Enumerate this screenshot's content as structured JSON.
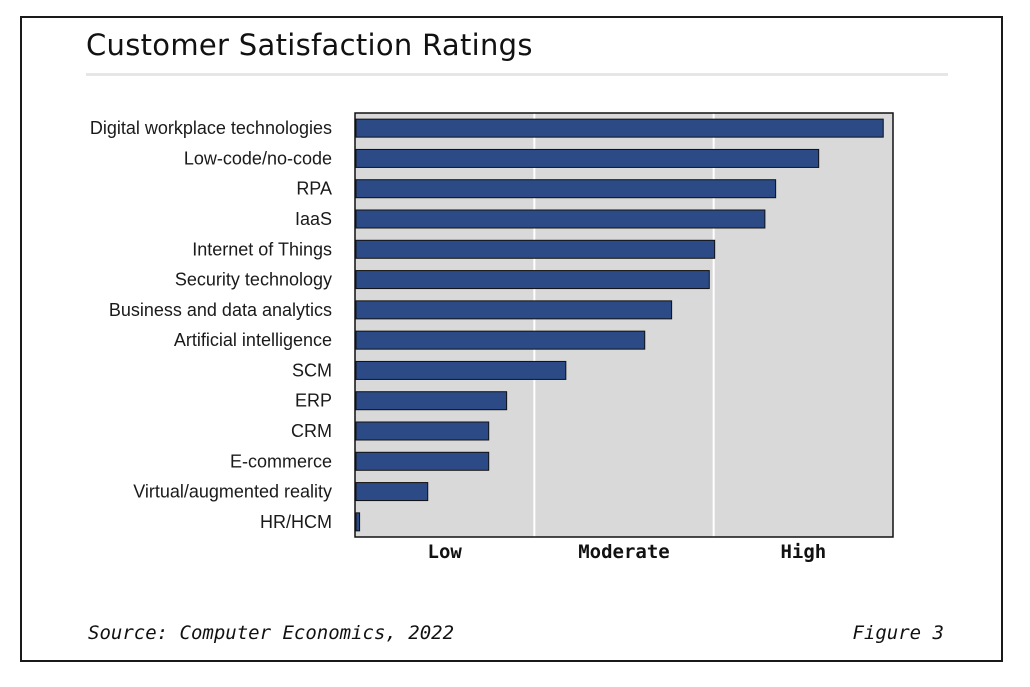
{
  "title": "Customer Satisfaction Ratings",
  "footer": {
    "source": "Source: Computer Economics, 2022",
    "figure": "Figure 3"
  },
  "colors": {
    "bar": "#2b4a86",
    "plot_background": "#d9d9d9",
    "gridline": "#ffffff"
  },
  "chart_data": {
    "type": "bar",
    "orientation": "horizontal",
    "categories": [
      "Digital workplace technologies",
      "Low-code/no-code",
      "RPA",
      "IaaS",
      "Internet of Things",
      "Security technology",
      "Business and data analytics",
      "Artificial intelligence",
      "SCM",
      "ERP",
      "CRM",
      "E-commerce",
      "Virtual/augmented reality",
      "HR/HCM"
    ],
    "values": [
      2.94,
      2.58,
      2.34,
      2.28,
      2.0,
      1.97,
      1.76,
      1.61,
      1.17,
      0.84,
      0.74,
      0.74,
      0.4,
      0.02
    ],
    "xlim": [
      0,
      3
    ],
    "x_ticks": [
      "Low",
      "Moderate",
      "High"
    ],
    "grid": true,
    "legend": "none"
  }
}
